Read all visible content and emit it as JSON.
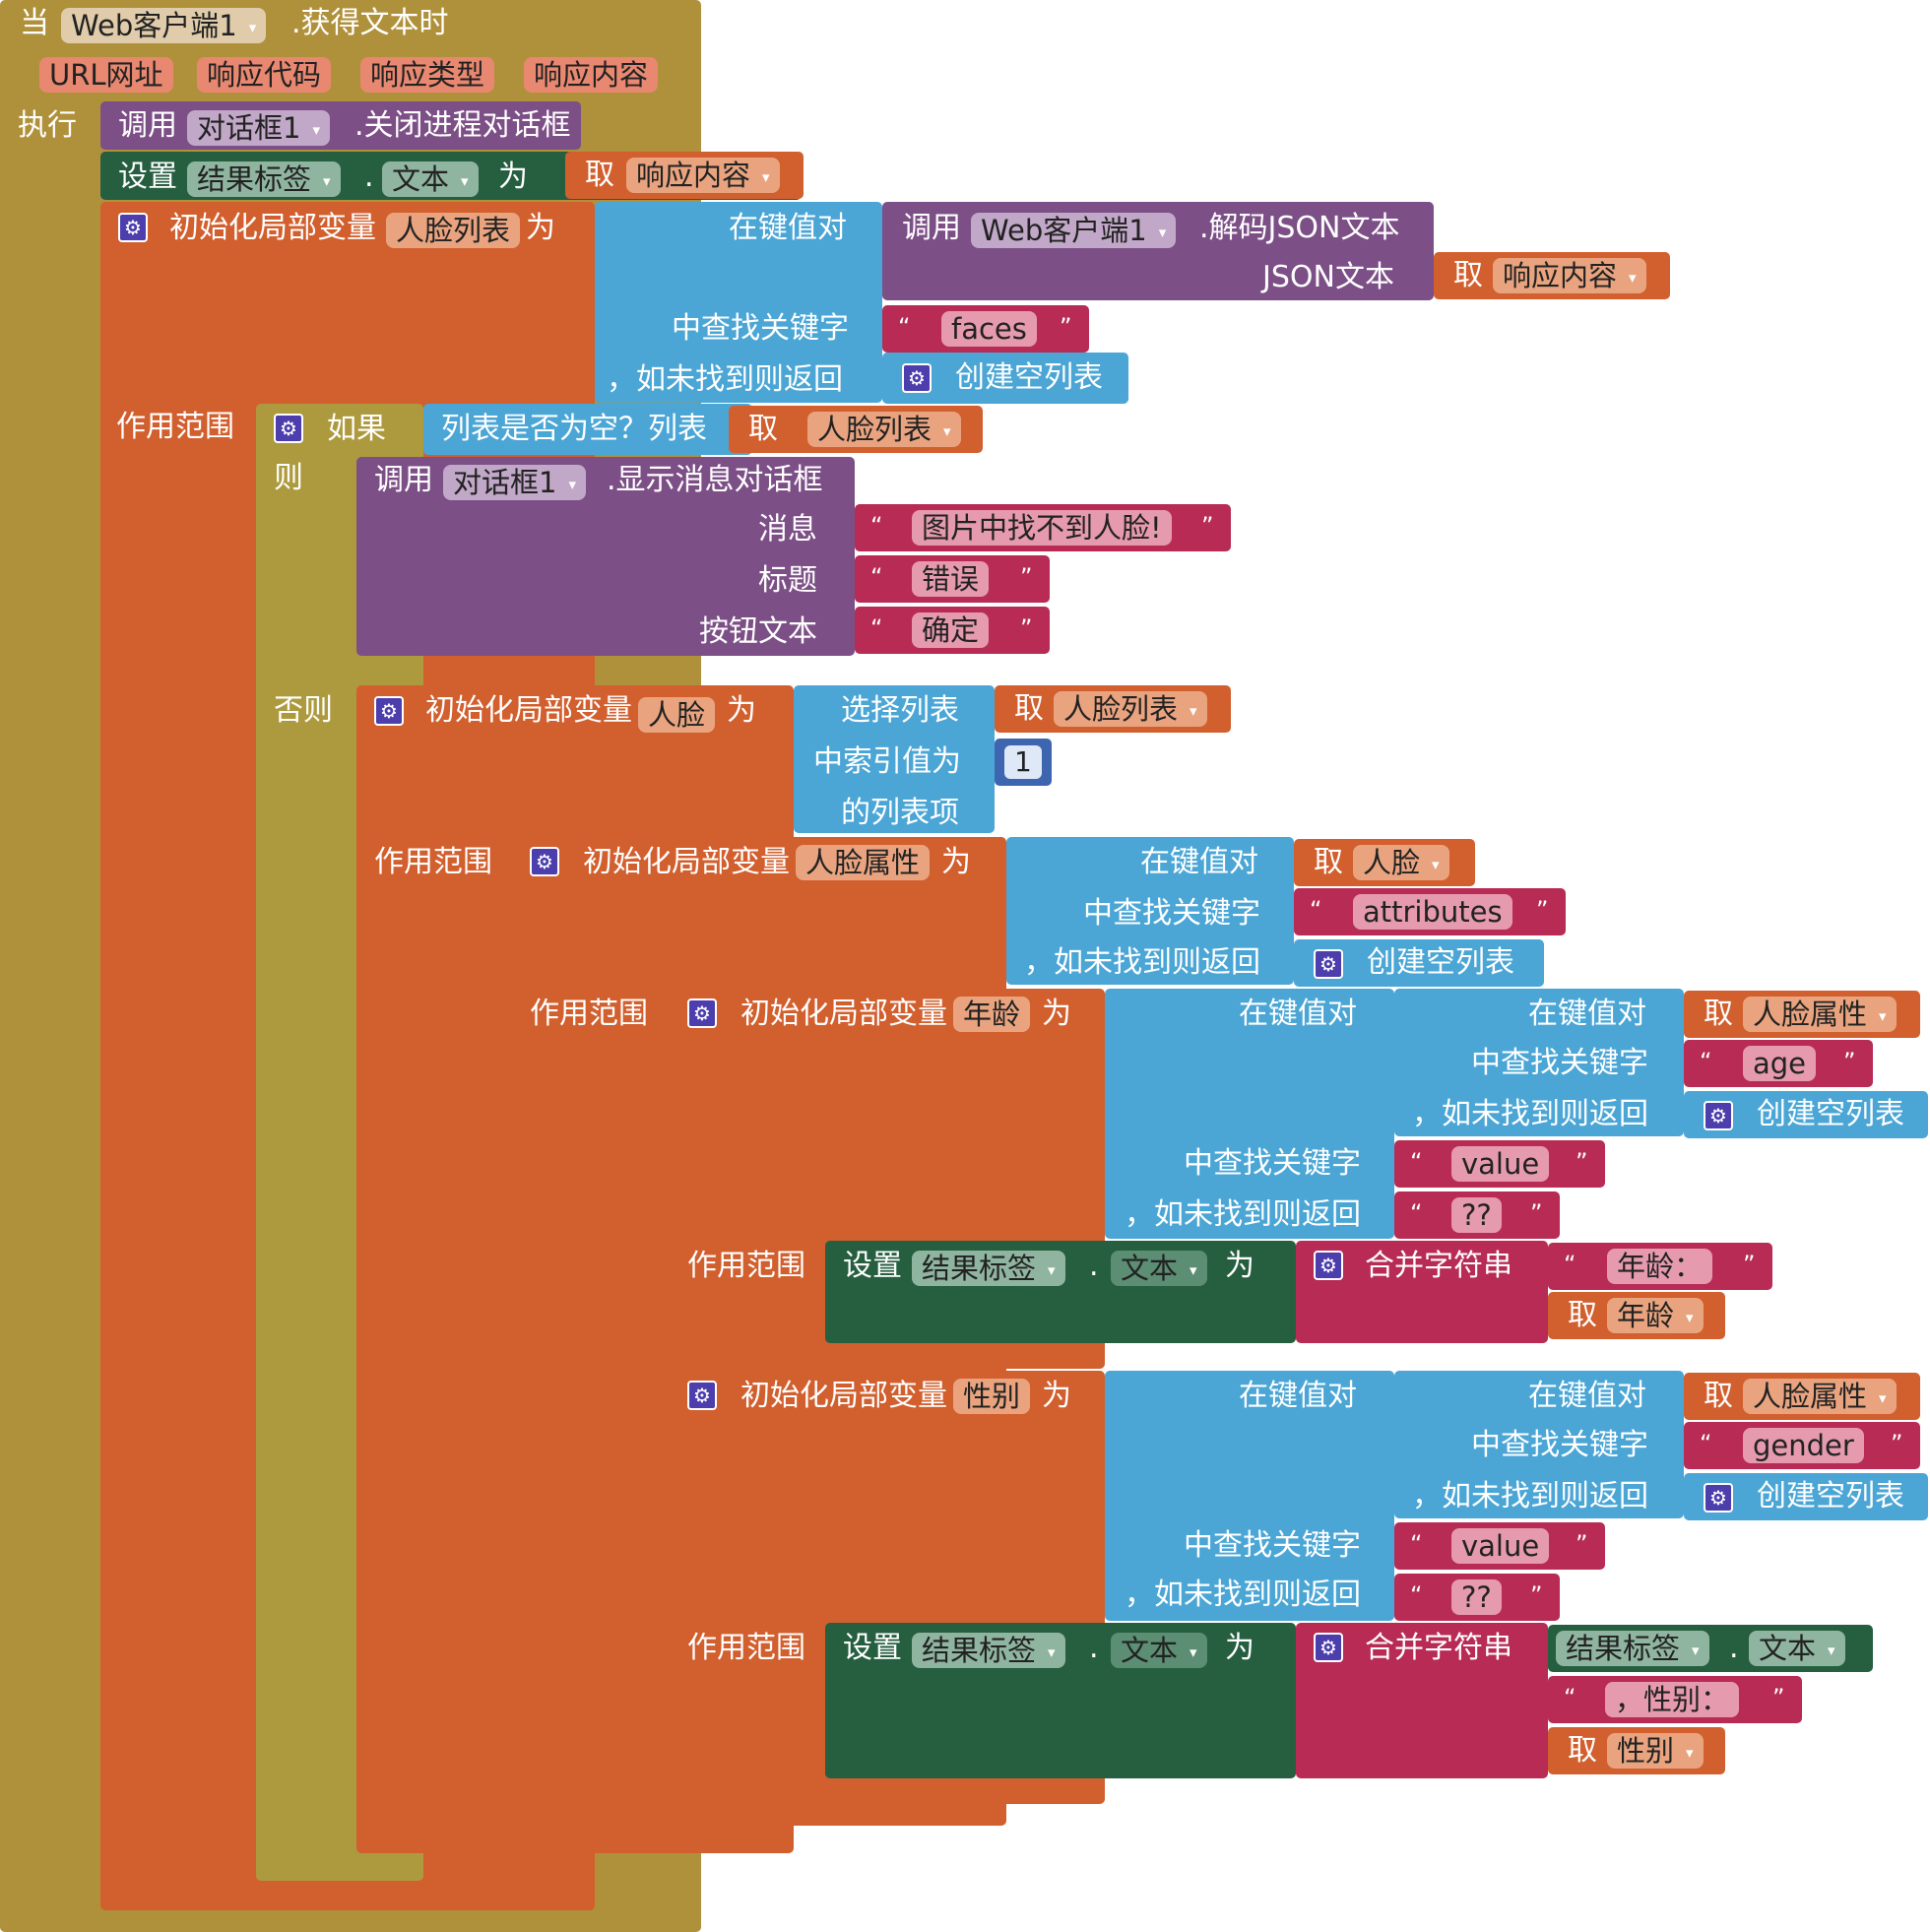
{
  "colors": {
    "event": "#b0913b",
    "control": "#ae9a3e",
    "variable": "#d25f2e",
    "variable_field": "#e9a47f",
    "procedure": "#7c4f86",
    "procedure_field": "#c2a8c8",
    "setter": "#265e40",
    "setter_field": "#8fb5a0",
    "setter_dark_field": "#5b8e73",
    "list": "#4ba6d6",
    "text": "#b72b55",
    "text_field": "#e69aae",
    "event_field": "#e0ccaa",
    "event_param": "#e98870",
    "math": "#3e66b0"
  },
  "labels": {
    "when": "当",
    "component_web": "Web客户端1",
    "event_got_text": ".获得文本时",
    "param_url": "URL网址",
    "param_code": "响应代码",
    "param_type": "响应类型",
    "param_content": "响应内容",
    "do": "执行",
    "call": "调用",
    "component_dialog": "对话框1",
    "dismiss_progress": ".关闭进程对话框",
    "set": "设置",
    "component_result": "结果标签",
    "dot": ".",
    "prop_text": "文本",
    "to": "为",
    "get": "取",
    "init_local": "初始化局部变量",
    "var_face_list": "人脸列表",
    "lookup_pairs": "在键值对",
    "decode_json": ".解码JSON文本",
    "json_text": "JSON文本",
    "find_key": "中查找关键字",
    "if_not_found": "，如未找到则返回",
    "str_faces": "faces",
    "create_empty_list": "创建空列表",
    "scope": "作用范围",
    "if": "如果",
    "is_list_empty": "列表是否为空？列表",
    "then": "则",
    "show_message_dialog": ".显示消息对话框",
    "message": "消息",
    "str_no_face": "图片中找不到人脸!",
    "title": "标题",
    "str_error": "错误",
    "button_text": "按钮文本",
    "str_ok": "确定",
    "else": "否则",
    "var_face": "人脸",
    "select_list": "选择列表",
    "index_is": "中索引值为",
    "list_item": "的列表项",
    "num_one": "1",
    "var_face_attr": "人脸属性",
    "str_attributes": "attributes",
    "var_age": "年龄",
    "str_age": "age",
    "str_value": "value",
    "str_unknown": "??",
    "join": "合并字符串",
    "str_age_prefix": "年龄：",
    "var_gender": "性别",
    "str_gender": "gender",
    "str_gender_prefix": "，性别：",
    "quote_open": "“",
    "quote_close": "”"
  }
}
